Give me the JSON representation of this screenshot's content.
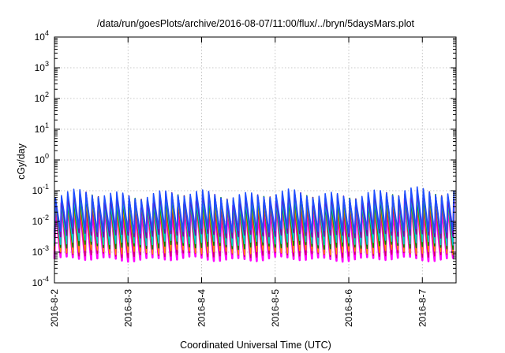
{
  "chart_data": {
    "type": "line",
    "title": "/data/run/goesPlots/archive/2016-08-07/11:00/flux/../bryn/5daysMars.plot",
    "xlabel": "Coordinated Universal Time (UTC)",
    "ylabel": "cGy/day",
    "yscale": "log",
    "ylim": [
      0.0001,
      10000
    ],
    "xlim": [
      "2016-08-02 00:00",
      "2016-08-07 11:00"
    ],
    "grid": true,
    "x_ticks": [
      "2016-8-2",
      "2016-8-3",
      "2016-8-4",
      "2016-8-5",
      "2016-8-6",
      "2016-8-7"
    ],
    "y_ticks": [
      {
        "value": 0.0001,
        "base": "10",
        "exp": "-4"
      },
      {
        "value": 0.001,
        "base": "10",
        "exp": "-3"
      },
      {
        "value": 0.01,
        "base": "10",
        "exp": "-2"
      },
      {
        "value": 0.1,
        "base": "10",
        "exp": "-1"
      },
      {
        "value": 1,
        "base": "10",
        "exp": "0"
      },
      {
        "value": 10,
        "base": "10",
        "exp": "1"
      },
      {
        "value": 100,
        "base": "10",
        "exp": "2"
      },
      {
        "value": 1000,
        "base": "10",
        "exp": "3"
      },
      {
        "value": 10000,
        "base": "10",
        "exp": "4"
      }
    ],
    "period_hours": 2,
    "series": [
      {
        "color": "#ff00ff",
        "peak": 0.03,
        "trough": 0.0006
      },
      {
        "color": "#cc0066",
        "peak": 0.035,
        "trough": 0.0008
      },
      {
        "color": "#8b0000",
        "peak": 0.045,
        "trough": 0.0011
      },
      {
        "color": "#ff8c00",
        "peak": 0.04,
        "trough": 0.001
      },
      {
        "color": "#008000",
        "peak": 0.05,
        "trough": 0.0015
      },
      {
        "color": "#00cccc",
        "peak": 0.055,
        "trough": 0.002
      },
      {
        "color": "#6a0dad",
        "peak": 0.065,
        "trough": 0.0035
      },
      {
        "color": "#1f4fff",
        "peak": 0.075,
        "trough": 0.005
      }
    ]
  }
}
